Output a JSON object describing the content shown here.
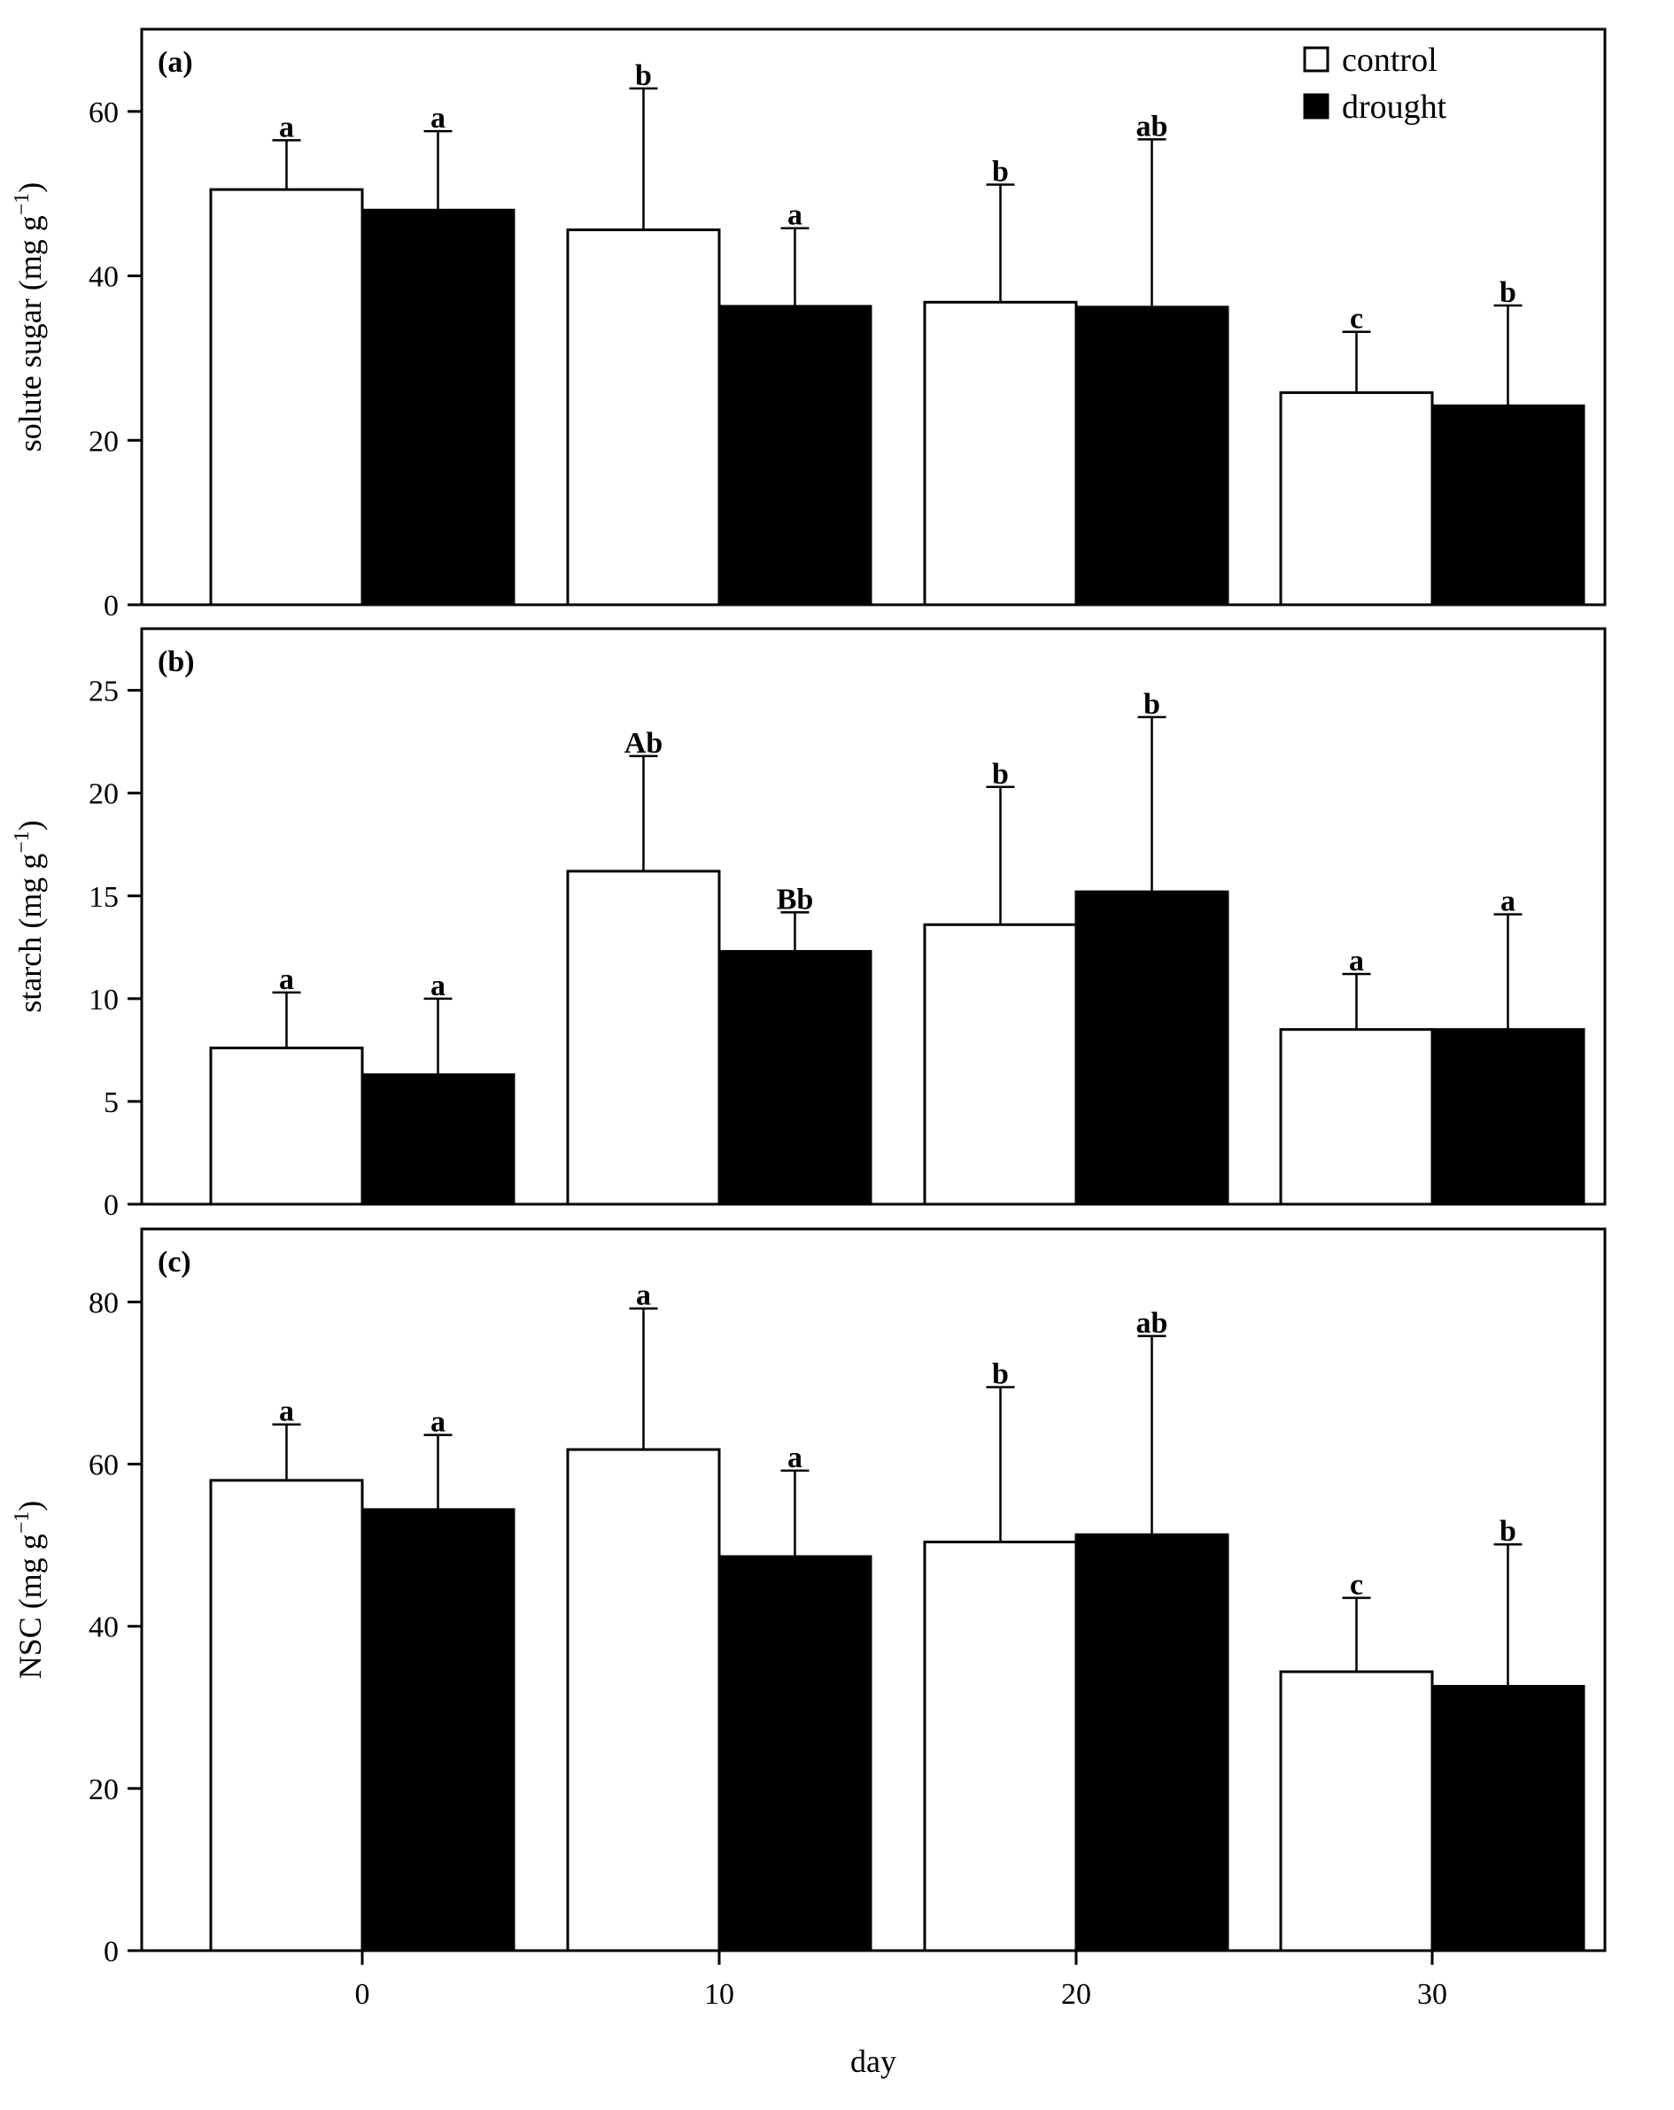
{
  "figure": {
    "xlabel": "day",
    "x_ticks": [
      "0",
      "10",
      "20",
      "30"
    ],
    "legend": [
      {
        "name": "control",
        "color": "#ffffff"
      },
      {
        "name": "drought",
        "color": "#000000"
      }
    ]
  },
  "chart_data": [
    {
      "type": "bar",
      "panel": "(a)",
      "ylabel": "solute sugar (mg g",
      "ylabel_sup": "−1",
      "ylabel_close": ")",
      "categories": [
        "0",
        "10",
        "20",
        "30"
      ],
      "ylim": [
        0,
        70
      ],
      "yticks": [
        0,
        20,
        40,
        60
      ],
      "legend_position": "top-right",
      "series": [
        {
          "name": "control",
          "color": "#ffffff",
          "values": [
            50.5,
            45.6,
            36.8,
            25.8
          ],
          "errors": [
            6.0,
            17.2,
            14.3,
            7.4
          ],
          "letters": [
            "a",
            "b",
            "b",
            "c"
          ]
        },
        {
          "name": "drought",
          "color": "#000000",
          "values": [
            48.0,
            36.3,
            36.2,
            24.2
          ],
          "errors": [
            9.6,
            9.5,
            20.4,
            12.2
          ],
          "letters": [
            "a",
            "a",
            "ab",
            "b"
          ]
        }
      ]
    },
    {
      "type": "bar",
      "panel": "(b)",
      "ylabel": "starch (mg g",
      "ylabel_sup": "−1",
      "ylabel_close": ")",
      "categories": [
        "0",
        "10",
        "20",
        "30"
      ],
      "ylim": [
        0,
        28
      ],
      "yticks": [
        0,
        5,
        10,
        15,
        20,
        25
      ],
      "series": [
        {
          "name": "control",
          "color": "#ffffff",
          "values": [
            7.6,
            16.2,
            13.6,
            8.5
          ],
          "errors": [
            2.7,
            5.6,
            6.7,
            2.7
          ],
          "letters": [
            "a",
            "Ab",
            "b",
            "a"
          ]
        },
        {
          "name": "drought",
          "color": "#000000",
          "values": [
            6.3,
            12.3,
            15.2,
            8.5
          ],
          "errors": [
            3.7,
            1.9,
            8.5,
            5.6
          ],
          "letters": [
            "a",
            "Bb",
            "b",
            "a"
          ]
        }
      ]
    },
    {
      "type": "bar",
      "panel": "(c)",
      "ylabel": "NSC (mg g",
      "ylabel_sup": "−1",
      "ylabel_close": ")",
      "categories": [
        "0",
        "10",
        "20",
        "30"
      ],
      "ylim": [
        0,
        89
      ],
      "yticks": [
        0,
        20,
        40,
        60,
        80
      ],
      "series": [
        {
          "name": "control",
          "color": "#ffffff",
          "values": [
            58.0,
            61.8,
            50.4,
            34.4
          ],
          "errors": [
            6.9,
            17.4,
            19.1,
            9.1
          ],
          "letters": [
            "a",
            "a",
            "b",
            "c"
          ]
        },
        {
          "name": "drought",
          "color": "#000000",
          "values": [
            54.4,
            48.6,
            51.3,
            32.6
          ],
          "errors": [
            9.2,
            10.6,
            24.5,
            17.5
          ],
          "letters": [
            "a",
            "a",
            "ab",
            "b"
          ]
        }
      ]
    }
  ]
}
